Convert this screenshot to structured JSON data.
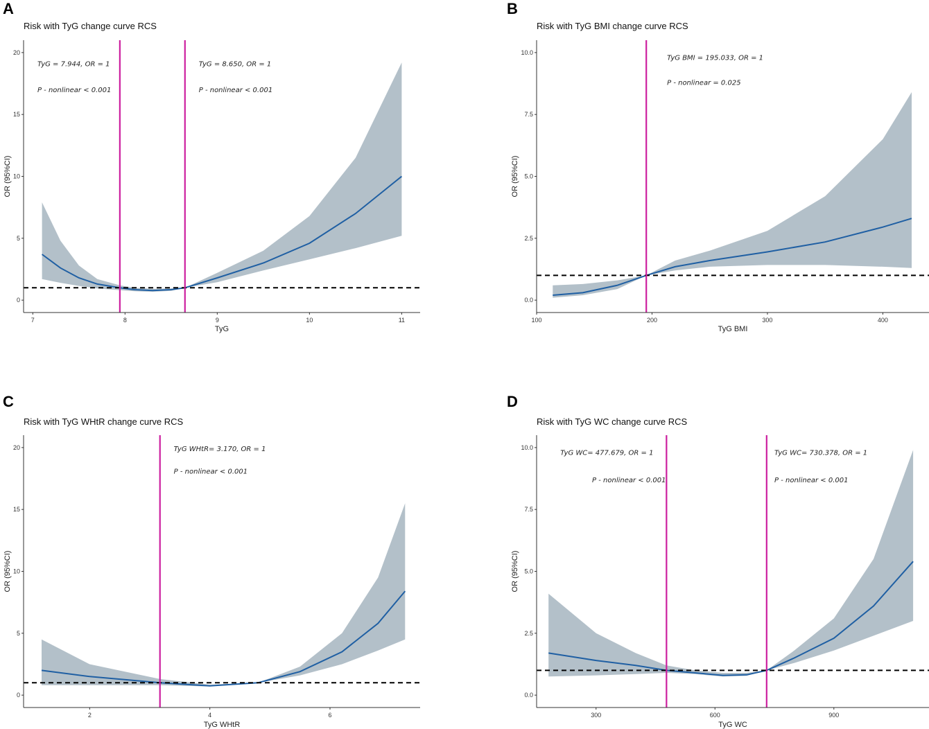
{
  "chart_data": [
    {
      "type": "line",
      "panel": "A",
      "title": "Risk with TyG change curve RCS",
      "xlabel": "TyG",
      "ylabel": "OR (95%CI)",
      "xlim": [
        6.9,
        11.2
      ],
      "ylim": [
        -1,
        21
      ],
      "xticks": [
        7,
        8,
        9,
        10,
        11
      ],
      "xtick_labels": [
        "7",
        "8",
        "9",
        "10",
        "11"
      ],
      "yticks": [
        0,
        5,
        10,
        15,
        20
      ],
      "ytick_labels": [
        "0",
        "5",
        "10",
        "15",
        "20"
      ],
      "reference_line": 1,
      "cutpoints": [
        7.944,
        8.65
      ],
      "annotations": [
        {
          "x": 7.05,
          "y": 18.9,
          "text": "TyG = 7.944,   OR = 1"
        },
        {
          "x": 7.05,
          "y": 16.8,
          "text": "P - nonlinear < 0.001"
        },
        {
          "x": 8.8,
          "y": 18.9,
          "text": "TyG = 8.650,   OR = 1"
        },
        {
          "x": 8.8,
          "y": 16.8,
          "text": "P - nonlinear < 0.001"
        }
      ],
      "x": [
        7.1,
        7.3,
        7.5,
        7.7,
        7.944,
        8.1,
        8.3,
        8.5,
        8.65,
        9.0,
        9.5,
        10.0,
        10.5,
        11.0
      ],
      "or": [
        3.7,
        2.6,
        1.8,
        1.3,
        1.0,
        0.85,
        0.78,
        0.85,
        1.0,
        1.8,
        3.0,
        4.6,
        7.0,
        10.0
      ],
      "lower": [
        1.7,
        1.4,
        1.15,
        0.95,
        0.8,
        0.72,
        0.68,
        0.75,
        1.0,
        1.45,
        2.4,
        3.3,
        4.2,
        5.2
      ],
      "upper": [
        7.9,
        4.8,
        2.8,
        1.7,
        1.2,
        1.0,
        0.92,
        0.95,
        1.0,
        2.2,
        4.0,
        6.8,
        11.5,
        19.2
      ]
    },
    {
      "type": "line",
      "panel": "B",
      "title": "Risk with TyG BMI change curve RCS",
      "xlabel": "TyG BMI",
      "ylabel": "OR (95%CI)",
      "xlim": [
        100,
        440
      ],
      "ylim": [
        -0.5,
        10.5
      ],
      "xticks": [
        100,
        200,
        300,
        400
      ],
      "xtick_labels": [
        "100",
        "200",
        "300",
        "400"
      ],
      "yticks": [
        0,
        2.5,
        5,
        7.5,
        10
      ],
      "ytick_labels": [
        "0.0",
        "2.5",
        "5.0",
        "7.5",
        "10.0"
      ],
      "reference_line": 1,
      "cutpoints": [
        195.033
      ],
      "annotations": [
        {
          "x": 213,
          "y": 9.7,
          "text": "TyG BMI = 195.033,   OR = 1"
        },
        {
          "x": 213,
          "y": 8.7,
          "text": "P - nonlinear = 0.025"
        }
      ],
      "x": [
        114,
        140,
        170,
        195.033,
        220,
        250,
        300,
        350,
        400,
        425
      ],
      "or": [
        0.2,
        0.3,
        0.6,
        1.0,
        1.35,
        1.6,
        1.95,
        2.35,
        2.95,
        3.3
      ],
      "lower": [
        0.1,
        0.2,
        0.45,
        1.0,
        1.2,
        1.35,
        1.42,
        1.42,
        1.35,
        1.3
      ],
      "upper": [
        0.6,
        0.65,
        0.8,
        1.0,
        1.6,
        2.0,
        2.8,
        4.2,
        6.5,
        8.4
      ]
    },
    {
      "type": "line",
      "panel": "C",
      "title": "Risk with TyG WHtR change curve RCS",
      "xlabel": "TyG WHtR",
      "ylabel": "OR (95%CI)",
      "xlim": [
        0.9,
        7.5
      ],
      "ylim": [
        -1,
        21
      ],
      "xticks": [
        2,
        4,
        6
      ],
      "xtick_labels": [
        "2",
        "4",
        "6"
      ],
      "yticks": [
        0,
        5,
        10,
        15,
        20
      ],
      "ytick_labels": [
        "0",
        "5",
        "10",
        "15",
        "20"
      ],
      "reference_line": 1,
      "cutpoints": [
        3.17
      ],
      "annotations": [
        {
          "x": 3.4,
          "y": 19.7,
          "text": "TyG WHtR= 3.170,   OR = 1"
        },
        {
          "x": 3.4,
          "y": 17.9,
          "text": "P - nonlinear < 0.001"
        }
      ],
      "x": [
        1.2,
        2.0,
        3.17,
        4.0,
        4.8,
        5.5,
        6.2,
        6.8,
        7.25
      ],
      "or": [
        2.0,
        1.5,
        1.0,
        0.75,
        1.0,
        1.9,
        3.5,
        5.8,
        8.4
      ],
      "lower": [
        0.8,
        0.8,
        0.8,
        0.7,
        1.0,
        1.6,
        2.5,
        3.6,
        4.5
      ],
      "upper": [
        4.5,
        2.5,
        1.3,
        0.85,
        1.0,
        2.3,
        5.0,
        9.5,
        15.5
      ]
    },
    {
      "type": "line",
      "panel": "D",
      "title": "Risk with TyG WC change curve RCS",
      "xlabel": "TyG WC",
      "ylabel": "OR (95%CI)",
      "xlim": [
        150,
        1140
      ],
      "ylim": [
        -0.5,
        10.5
      ],
      "xticks": [
        300,
        600,
        900
      ],
      "xtick_labels": [
        "300",
        "600",
        "900"
      ],
      "yticks": [
        0,
        2.5,
        5,
        7.5,
        10
      ],
      "ytick_labels": [
        "0.0",
        "2.5",
        "5.0",
        "7.5",
        "10.0"
      ],
      "reference_line": 1,
      "cutpoints": [
        477.679,
        730.378
      ],
      "annotations": [
        {
          "x": 210,
          "y": 9.7,
          "text": "TyG WC=  477.679,   OR = 1"
        },
        {
          "x": 290,
          "y": 8.6,
          "text": "P - nonlinear < 0.001"
        },
        {
          "x": 750,
          "y": 9.7,
          "text": "TyG WC=  730.378,   OR = 1"
        },
        {
          "x": 750,
          "y": 8.6,
          "text": "P - nonlinear < 0.001"
        }
      ],
      "x": [
        180,
        300,
        400,
        477.679,
        550,
        620,
        680,
        730.378,
        800,
        900,
        1000,
        1100
      ],
      "or": [
        1.7,
        1.4,
        1.2,
        1.0,
        0.9,
        0.8,
        0.82,
        1.0,
        1.5,
        2.3,
        3.6,
        5.4
      ],
      "lower": [
        0.75,
        0.8,
        0.85,
        0.9,
        0.85,
        0.75,
        0.78,
        1.0,
        1.3,
        1.8,
        2.4,
        3.0
      ],
      "upper": [
        4.1,
        2.5,
        1.7,
        1.2,
        1.0,
        0.9,
        0.9,
        1.0,
        1.8,
        3.1,
        5.5,
        9.9
      ]
    }
  ]
}
